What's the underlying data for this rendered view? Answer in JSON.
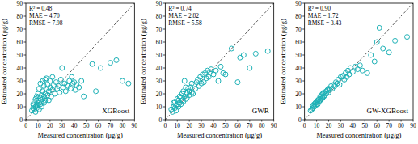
{
  "chart_data": [
    {
      "type": "scatter",
      "title": "XGBoost",
      "x_label": "Measured concentration (μg/g)",
      "y_label": "Estimated concentration (μg/g)",
      "annotations": [
        "R² = 0.48",
        "MAE = 4.70",
        "RMSE = 7.98"
      ],
      "color": "#1db1b6",
      "marker": "circle",
      "xlim": [
        0,
        90
      ],
      "ylim": [
        0,
        90
      ],
      "xticks": [
        0,
        10,
        20,
        30,
        40,
        50,
        60,
        70,
        80,
        90
      ],
      "yticks": [
        0,
        10,
        20,
        30,
        40,
        50,
        60,
        70,
        80,
        90
      ],
      "x": [
        5,
        6,
        6,
        7,
        7,
        8,
        8,
        8,
        9,
        9,
        9,
        10,
        10,
        10,
        11,
        11,
        11,
        12,
        12,
        12,
        13,
        13,
        13,
        14,
        14,
        14,
        15,
        15,
        15,
        16,
        16,
        16,
        17,
        17,
        18,
        18,
        19,
        19,
        20,
        20,
        21,
        22,
        22,
        23,
        24,
        25,
        26,
        27,
        28,
        29,
        30,
        31,
        32,
        33,
        34,
        35,
        36,
        37,
        38,
        39,
        40,
        41,
        42,
        44,
        46,
        48,
        55,
        58,
        62,
        70,
        75,
        80,
        85
      ],
      "values": [
        7,
        9,
        12,
        8,
        14,
        10,
        16,
        6,
        12,
        18,
        9,
        11,
        15,
        20,
        13,
        8,
        24,
        17,
        12,
        28,
        14,
        19,
        10,
        22,
        16,
        30,
        18,
        13,
        26,
        20,
        31,
        15,
        24,
        32,
        19,
        27,
        22,
        15,
        25,
        30,
        18,
        33,
        23,
        27,
        20,
        29,
        24,
        26,
        21,
        31,
        40,
        25,
        28,
        22,
        27,
        26,
        30,
        24,
        33,
        28,
        29,
        23,
        27,
        25,
        30,
        18,
        43,
        22,
        40,
        44,
        46,
        30,
        28
      ]
    },
    {
      "type": "scatter",
      "title": "GWR",
      "x_label": "Measured concentration (μg/g)",
      "y_label": "Estimated concentration (μg/g)",
      "annotations": [
        "R² = 0.74",
        "MAE = 2.82",
        "RMSE = 5.58"
      ],
      "color": "#1db1b6",
      "marker": "circle",
      "xlim": [
        0,
        90
      ],
      "ylim": [
        0,
        90
      ],
      "xticks": [
        0,
        10,
        20,
        30,
        40,
        50,
        60,
        70,
        80,
        90
      ],
      "yticks": [
        0,
        10,
        20,
        30,
        40,
        50,
        60,
        70,
        80,
        90
      ],
      "x": [
        5,
        6,
        7,
        7,
        8,
        8,
        9,
        9,
        10,
        10,
        11,
        11,
        12,
        12,
        13,
        13,
        14,
        14,
        15,
        15,
        16,
        16,
        17,
        17,
        18,
        18,
        19,
        20,
        20,
        21,
        22,
        22,
        23,
        24,
        25,
        26,
        27,
        28,
        29,
        30,
        31,
        32,
        33,
        34,
        35,
        36,
        37,
        38,
        40,
        42,
        44,
        46,
        48,
        50,
        55,
        60,
        62,
        65,
        70,
        75,
        85
      ],
      "values": [
        8,
        6,
        10,
        13,
        9,
        14,
        11,
        7,
        12,
        16,
        10,
        15,
        13,
        18,
        12,
        17,
        15,
        20,
        14,
        22,
        18,
        30,
        16,
        25,
        21,
        17,
        24,
        22,
        19,
        25,
        21,
        28,
        20,
        27,
        24,
        29,
        31,
        26,
        33,
        28,
        35,
        29,
        36,
        32,
        38,
        33,
        37,
        39,
        35,
        38,
        30,
        41,
        36,
        35,
        55,
        29,
        48,
        50,
        40,
        51,
        53
      ]
    },
    {
      "type": "scatter",
      "title": "GW-XGBoost",
      "x_label": "Measured concentration (μg/g)",
      "y_label": "Estimated concentration (μg/g)",
      "annotations": [
        "R² = 0.90",
        "MAE = 1.72",
        "RMSE = 3.43"
      ],
      "color": "#1db1b6",
      "marker": "circle",
      "xlim": [
        0,
        90
      ],
      "ylim": [
        0,
        90
      ],
      "xticks": [
        0,
        10,
        20,
        30,
        40,
        50,
        60,
        70,
        80,
        90
      ],
      "yticks": [
        0,
        10,
        20,
        30,
        40,
        50,
        60,
        70,
        80,
        90
      ],
      "x": [
        5,
        6,
        7,
        7,
        8,
        8,
        9,
        9,
        10,
        10,
        11,
        11,
        12,
        12,
        13,
        13,
        14,
        14,
        15,
        15,
        16,
        16,
        17,
        18,
        18,
        19,
        20,
        20,
        21,
        22,
        23,
        24,
        25,
        26,
        27,
        28,
        29,
        30,
        31,
        32,
        33,
        34,
        35,
        36,
        37,
        38,
        40,
        42,
        44,
        46,
        48,
        52,
        55,
        58,
        60,
        62,
        65,
        70,
        75,
        85
      ],
      "values": [
        7,
        8,
        9,
        11,
        10,
        12,
        11,
        13,
        12,
        14,
        12,
        15,
        14,
        16,
        15,
        18,
        16,
        19,
        17,
        20,
        18,
        21,
        19,
        22,
        20,
        23,
        21,
        24,
        23,
        26,
        24,
        27,
        26,
        29,
        28,
        31,
        27,
        33,
        30,
        34,
        31,
        36,
        33,
        38,
        35,
        40,
        37,
        41,
        39,
        42,
        38,
        36,
        50,
        45,
        60,
        71,
        55,
        52,
        61,
        64
      ]
    }
  ]
}
